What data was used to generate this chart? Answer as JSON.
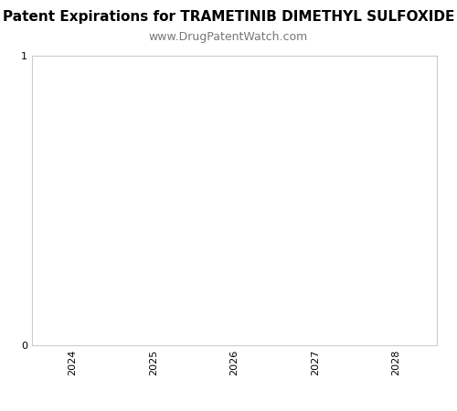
{
  "title": "Patent Expirations for TRAMETINIB DIMETHYL SULFOXIDE",
  "subtitle": "www.DrugPatentWatch.com",
  "title_fontsize": 11,
  "subtitle_fontsize": 9,
  "title_fontweight": "bold",
  "xlim": [
    2023.5,
    2028.5
  ],
  "ylim": [
    0,
    1
  ],
  "xticks": [
    2024,
    2025,
    2026,
    2027,
    2028
  ],
  "yticks": [
    0,
    1
  ],
  "background_color": "#ffffff",
  "axes_bg_color": "#ffffff",
  "spine_color": "#cccccc",
  "tick_label_fontsize": 8,
  "xlabel": "",
  "ylabel": ""
}
